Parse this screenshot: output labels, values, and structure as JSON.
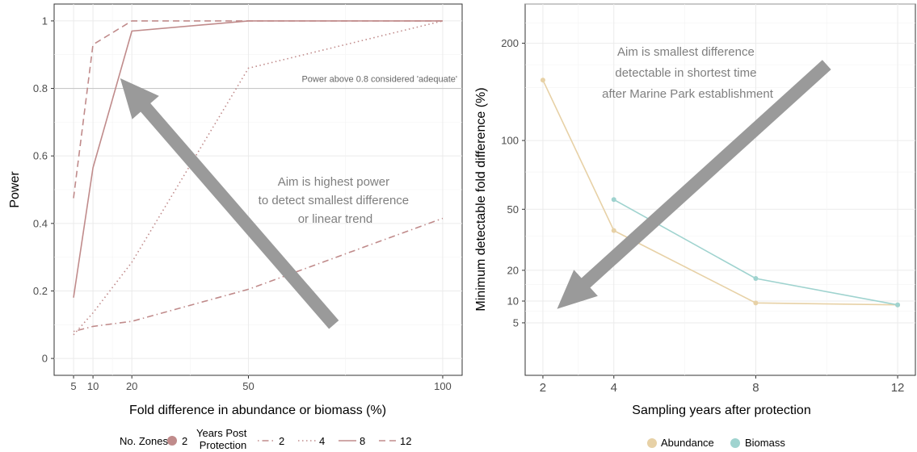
{
  "colors": {
    "left_series": "#c08b8b",
    "abundance": "#e7d1a6",
    "biomass": "#9fd3cf",
    "arrow": "#9a9a9a",
    "grid": "#ebebeb",
    "reference_line": "#c8c8c8"
  },
  "chart_data": [
    {
      "type": "line",
      "xlabel": "Fold difference in abundance or biomass (%)",
      "ylabel": "Power",
      "x": [
        5,
        10,
        20,
        50,
        100
      ],
      "xlim": [
        0,
        105
      ],
      "ylim": [
        -0.05,
        1.05
      ],
      "x_ticks": [
        5,
        10,
        20,
        50,
        100
      ],
      "y_ticks": [
        0,
        0.2,
        0.4,
        0.6,
        0.8,
        1
      ],
      "y_tick_labels": [
        "0",
        "0.2",
        "0.4",
        "0.6",
        "0.8",
        "1"
      ],
      "grid": true,
      "reference_line": {
        "y": 0.8,
        "label": "Power above 0.8 considered 'adequate'"
      },
      "annotation": {
        "lines": [
          "Aim is highest power",
          "to detect smallest difference",
          "or linear trend"
        ],
        "arrow_from": [
          72,
          0.1
        ],
        "arrow_to": [
          17,
          0.83
        ]
      },
      "series": [
        {
          "years_post_protection": "2",
          "dash": "dotdash",
          "values": [
            0.08,
            0.095,
            0.11,
            0.205,
            0.415
          ]
        },
        {
          "years_post_protection": "4",
          "dash": "dotted",
          "values": [
            0.07,
            0.135,
            0.285,
            0.86,
            1.0
          ]
        },
        {
          "years_post_protection": "8",
          "dash": "solid",
          "values": [
            0.18,
            0.565,
            0.97,
            1.0,
            1.0
          ]
        },
        {
          "years_post_protection": "12",
          "dash": "dashed",
          "values": [
            0.475,
            0.93,
            1.0,
            1.0,
            1.0
          ]
        }
      ],
      "legend": {
        "placement": "bottom",
        "zones_title": "No. Zones",
        "zones_value": "2",
        "years_title_line1": "Years Post",
        "years_title_line2": "Protection",
        "years_labels": [
          "2",
          "4",
          "8",
          "12"
        ]
      }
    },
    {
      "type": "line",
      "xlabel": "Sampling years after protection",
      "ylabel": "Minimum detectable fold difference (%)",
      "xlim": [
        1.5,
        12.5
      ],
      "x_ticks": [
        2,
        4,
        8,
        12
      ],
      "y_scale": "sqrt",
      "ylim": [
        0,
        250
      ],
      "y_ticks": [
        5,
        10,
        20,
        50,
        100,
        200
      ],
      "grid": true,
      "annotation": {
        "lines": [
          "Aim is smallest difference",
          "detectable in shortest time",
          "after Marine Park establishment"
        ],
        "arrow_from": [
          10,
          175
        ],
        "arrow_to": [
          2.4,
          8
        ]
      },
      "series": [
        {
          "name": "Abundance",
          "x": [
            2,
            4,
            8,
            12
          ],
          "values": [
            158,
            38,
            9.5,
            9
          ]
        },
        {
          "name": "Biomass",
          "x": [
            4,
            8,
            12
          ],
          "values": [
            56,
            17,
            9
          ]
        }
      ],
      "legend": {
        "placement": "bottom",
        "labels": [
          "Abundance",
          "Biomass"
        ]
      }
    }
  ]
}
